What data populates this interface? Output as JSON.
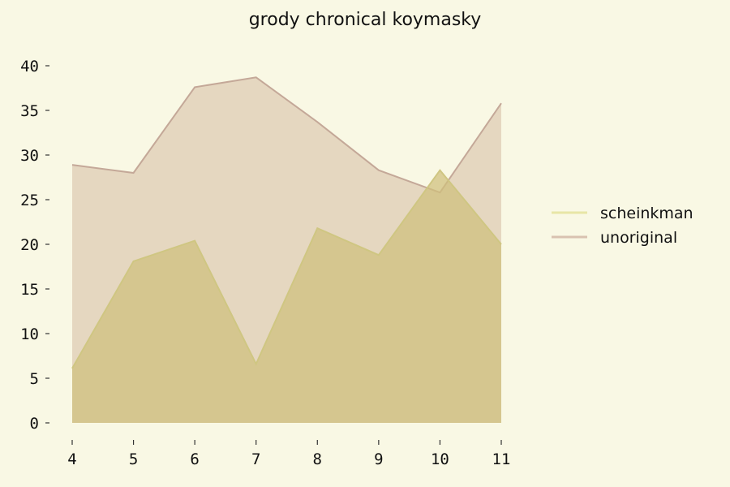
{
  "chart_data": {
    "type": "area",
    "title": "grody chronical koymasky",
    "xlabel": "",
    "ylabel": "",
    "x": [
      4,
      5,
      6,
      7,
      8,
      9,
      10,
      11
    ],
    "xlim": [
      4,
      11
    ],
    "ylim": [
      0,
      40
    ],
    "x_ticks": [
      4,
      5,
      6,
      7,
      8,
      9,
      10,
      11
    ],
    "y_ticks": [
      0,
      5,
      10,
      15,
      20,
      25,
      30,
      35,
      40
    ],
    "grid": false,
    "stacked": false,
    "legend_position": "right",
    "series": [
      {
        "name": "scheinkman",
        "color": "#e8e6a6",
        "values": [
          6.1,
          18.1,
          20.4,
          6.6,
          21.8,
          18.8,
          28.3,
          20.0
        ]
      },
      {
        "name": "unoriginal",
        "color": "#d9c2b0",
        "values": [
          28.9,
          28.0,
          37.6,
          38.7,
          33.7,
          28.3,
          25.8,
          35.8
        ]
      }
    ]
  }
}
